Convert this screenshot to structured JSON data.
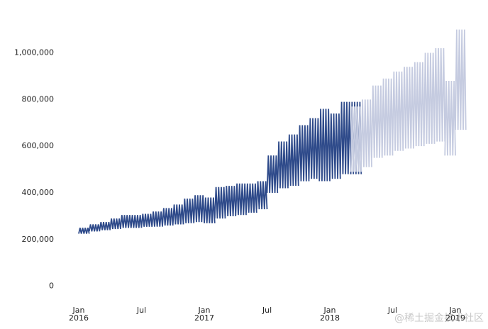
{
  "chart_data": {
    "type": "line",
    "x": [
      "2016-01",
      "2016-02",
      "2016-03",
      "2016-04",
      "2016-05",
      "2016-06",
      "2016-07",
      "2016-08",
      "2016-09",
      "2016-10",
      "2016-11",
      "2016-12",
      "2017-01",
      "2017-02",
      "2017-03",
      "2017-04",
      "2017-05",
      "2017-06",
      "2017-07",
      "2017-08",
      "2017-09",
      "2017-10",
      "2017-11",
      "2017-12",
      "2018-01",
      "2018-02",
      "2018-03",
      "2018-04",
      "2018-05",
      "2018-06",
      "2018-07",
      "2018-08",
      "2018-09",
      "2018-10",
      "2018-11",
      "2018-12",
      "2019-01"
    ],
    "series": [
      {
        "color": "#2e4a8a",
        "values": [
          250000,
          265000,
          275000,
          290000,
          305000,
          305000,
          310000,
          320000,
          335000,
          350000,
          375000,
          390000,
          380000,
          425000,
          430000,
          440000,
          440000,
          450000,
          560000,
          620000,
          650000,
          690000,
          720000,
          760000,
          740000,
          790000,
          790000,
          null,
          null,
          null,
          null,
          null,
          null,
          null,
          null,
          null,
          null
        ]
      },
      {
        "color": "#2e4a8a",
        "values": [
          225000,
          235000,
          240000,
          245000,
          250000,
          250000,
          255000,
          255000,
          260000,
          265000,
          270000,
          275000,
          270000,
          290000,
          300000,
          305000,
          315000,
          330000,
          400000,
          420000,
          430000,
          450000,
          460000,
          450000,
          460000,
          480000,
          480000,
          null,
          null,
          null,
          null,
          null,
          null,
          null,
          null,
          null,
          null
        ]
      },
      {
        "color": "#c5cbe0",
        "values": [
          null,
          null,
          null,
          null,
          null,
          null,
          null,
          null,
          null,
          null,
          null,
          null,
          null,
          null,
          null,
          null,
          null,
          null,
          null,
          null,
          null,
          null,
          null,
          null,
          null,
          null,
          770000,
          800000,
          860000,
          890000,
          920000,
          940000,
          960000,
          1000000,
          1020000,
          880000,
          1100000
        ]
      },
      {
        "color": "#c5cbe0",
        "values": [
          null,
          null,
          null,
          null,
          null,
          null,
          null,
          null,
          null,
          null,
          null,
          null,
          null,
          null,
          null,
          null,
          null,
          null,
          null,
          null,
          null,
          null,
          null,
          null,
          null,
          null,
          490000,
          510000,
          550000,
          560000,
          580000,
          590000,
          600000,
          610000,
          620000,
          560000,
          670000
        ]
      }
    ],
    "ylim": [
      -80000,
      1120000
    ],
    "yticks": [
      0,
      {
        "value": 200000,
        "label": "200,000"
      },
      {
        "value": 400000,
        "label": "400,000"
      },
      {
        "value": 600000,
        "label": "600,000"
      },
      {
        "value": 800000,
        "label": "800,000"
      },
      {
        "value": 1000000,
        "label": "1,000,000"
      }
    ],
    "xticks": [
      {
        "value": "2016-01",
        "label": "Jan\n2016"
      },
      {
        "value": "2016-07",
        "label": "Jul"
      },
      {
        "value": "2017-01",
        "label": "Jan\n2017"
      },
      {
        "value": "2017-07",
        "label": "Jul"
      },
      {
        "value": "2018-01",
        "label": "Jan\n2018"
      },
      {
        "value": "2018-07",
        "label": "Jul"
      },
      {
        "value": "2019-01",
        "label": "Jan\n2019"
      }
    ],
    "grid": false,
    "watermark": "@稀土掘金技术社区"
  }
}
